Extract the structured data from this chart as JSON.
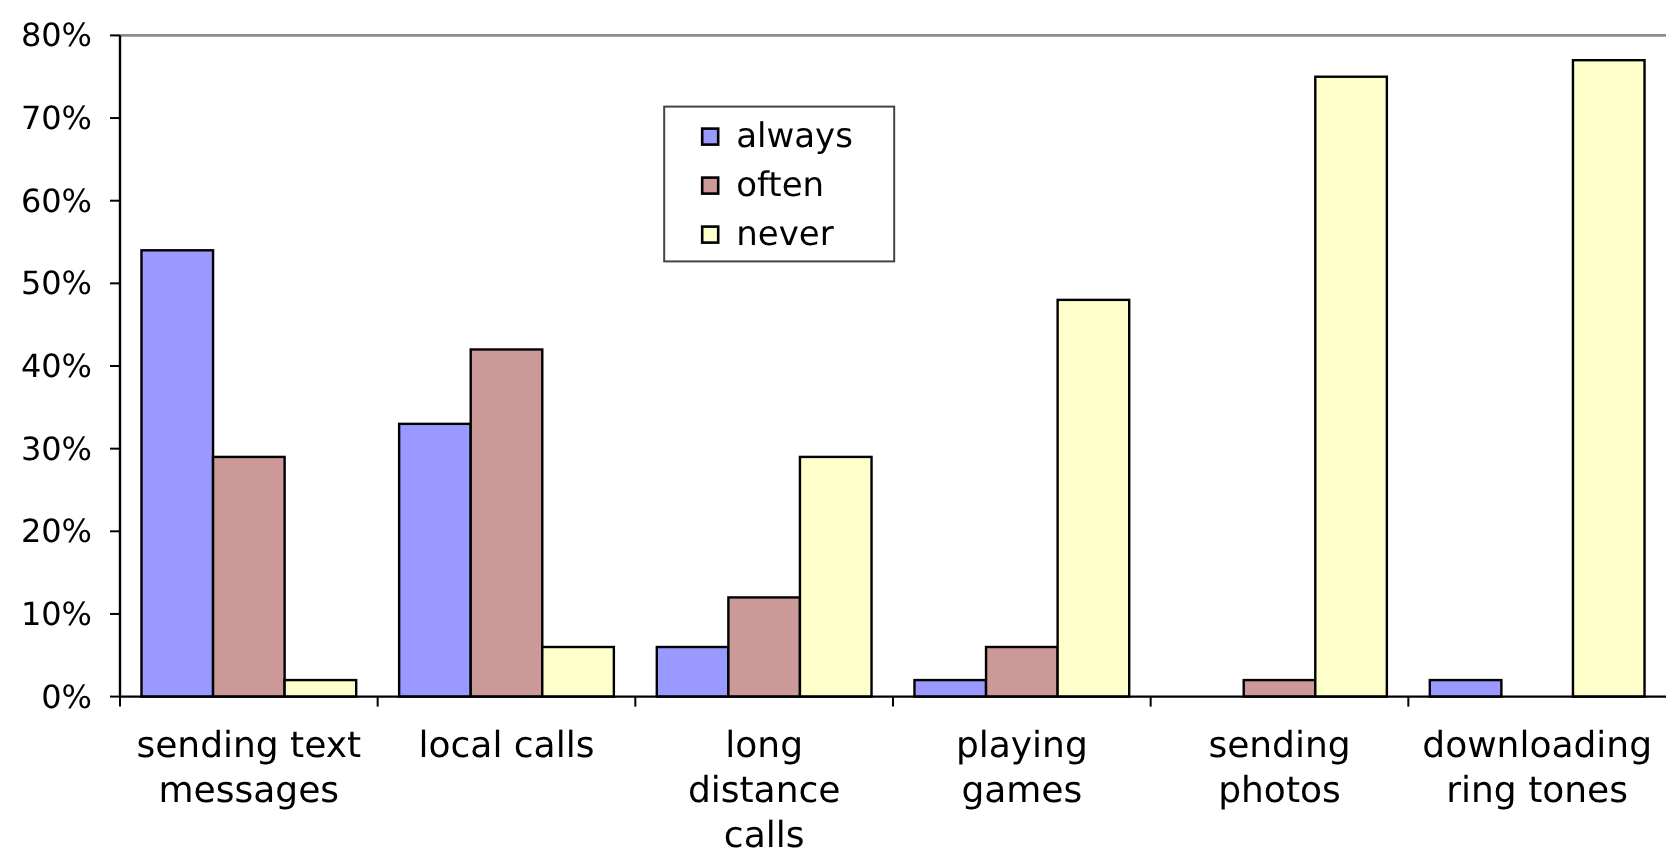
{
  "chart_data": {
    "type": "bar",
    "categories": [
      "sending text messages",
      "local calls",
      "long distance calls",
      "playing games",
      "sending photos",
      "downloading ring tones"
    ],
    "series": [
      {
        "name": "always",
        "color": "#9999ff",
        "values": [
          54,
          33,
          6,
          2,
          0,
          2
        ]
      },
      {
        "name": "often",
        "color": "#cc9999",
        "values": [
          29,
          42,
          12,
          6,
          2,
          0
        ]
      },
      {
        "name": "never",
        "color": "#ffffcc",
        "values": [
          2,
          6,
          29,
          48,
          75,
          77
        ]
      }
    ],
    "ylim": [
      0,
      80
    ],
    "yticks": [
      {
        "value": 0,
        "label": "0%"
      },
      {
        "value": 10,
        "label": "10%"
      },
      {
        "value": 20,
        "label": "20%"
      },
      {
        "value": 30,
        "label": "30%"
      },
      {
        "value": 40,
        "label": "40%"
      },
      {
        "value": 50,
        "label": "50%"
      },
      {
        "value": 60,
        "label": "60%"
      },
      {
        "value": 70,
        "label": "70%"
      },
      {
        "value": 80,
        "label": "80%"
      }
    ],
    "legend": "top"
  }
}
